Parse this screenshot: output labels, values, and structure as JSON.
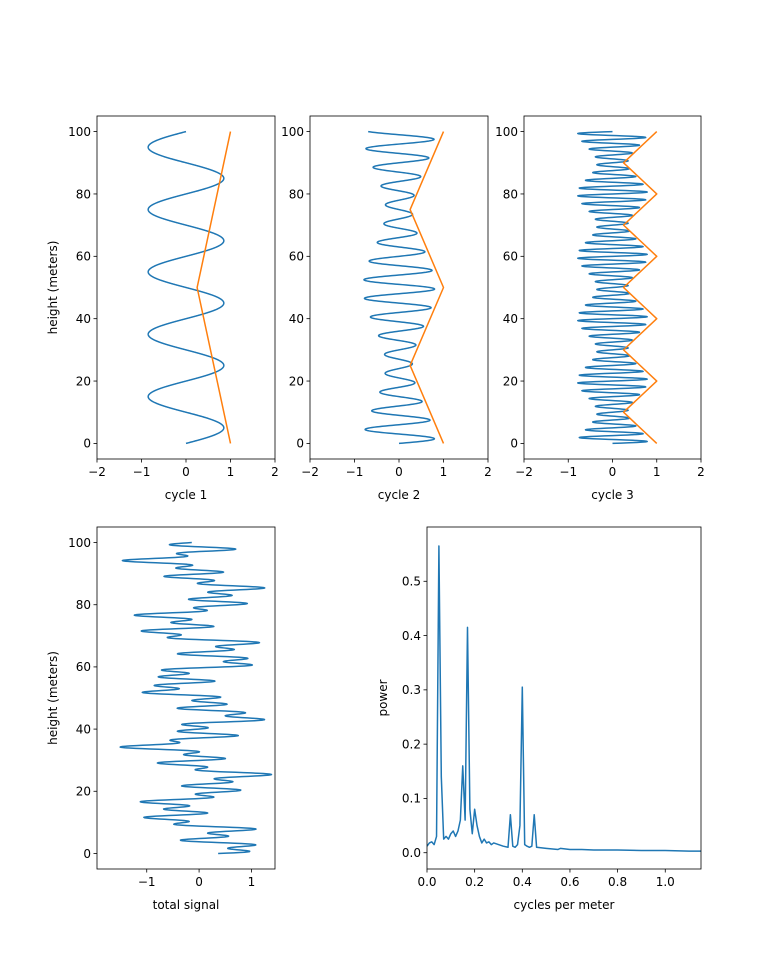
{
  "chart_data": [
    {
      "type": "line",
      "xlabel": "cycle 1",
      "ylabel": "height (meters)",
      "xlim": [
        -2,
        2
      ],
      "ylim": [
        -5,
        105
      ],
      "xticks": [
        "-2",
        "-1",
        "0",
        "1",
        "2"
      ],
      "yticks": [
        "0",
        "20",
        "40",
        "60",
        "80",
        "100"
      ],
      "series": [
        {
          "color": "#1f77b4",
          "kind": "sine",
          "amplitude": 0.85,
          "period_m": 20,
          "note_values": "x = 0.85*sin(2*pi*h/20), h from 0 to 100"
        },
        {
          "color": "#ff7f0e",
          "kind": "triangle",
          "x": [
            1,
            0.25,
            1
          ],
          "y": [
            0,
            50,
            100
          ]
        }
      ]
    },
    {
      "type": "line",
      "xlabel": "cycle 2",
      "ylabel": "",
      "xlim": [
        -2,
        2
      ],
      "ylim": [
        -5,
        105
      ],
      "xticks": [
        "-2",
        "-1",
        "0",
        "1",
        "2"
      ],
      "yticks": [
        "0",
        "20",
        "40",
        "60",
        "80",
        "100"
      ],
      "series": [
        {
          "color": "#1f77b4",
          "kind": "sine",
          "period_m": 6,
          "amplitude_min": 0.3,
          "amplitude_max": 0.8
        },
        {
          "color": "#ff7f0e",
          "kind": "triangle",
          "x": [
            1,
            0.25,
            1,
            0.25,
            1
          ],
          "y": [
            0,
            25,
            50,
            75,
            100
          ]
        }
      ]
    },
    {
      "type": "line",
      "xlabel": "cycle 3",
      "ylabel": "",
      "xlim": [
        -2,
        2
      ],
      "ylim": [
        -5,
        105
      ],
      "xticks": [
        "-2",
        "-1",
        "0",
        "1",
        "2"
      ],
      "yticks": [
        "0",
        "20",
        "40",
        "60",
        "80",
        "100"
      ],
      "series": [
        {
          "color": "#1f77b4",
          "kind": "sine",
          "period_m": 2.5,
          "amplitude_min": 0.35,
          "amplitude_max": 0.8
        },
        {
          "color": "#ff7f0e",
          "kind": "triangle",
          "x": [
            1,
            0.25,
            1,
            0.25,
            1,
            0.25,
            1,
            0.25,
            1,
            0.25,
            1
          ],
          "y": [
            0,
            10,
            20,
            30,
            40,
            50,
            60,
            70,
            80,
            90,
            100
          ]
        }
      ]
    },
    {
      "type": "line",
      "xlabel": "total signal",
      "ylabel": "height (meters)",
      "xlim": [
        -1.95,
        1.45
      ],
      "ylim": [
        -5,
        105
      ],
      "xticks": [
        "-1",
        "0",
        "1"
      ],
      "yticks": [
        "0",
        "20",
        "40",
        "60",
        "80",
        "100"
      ],
      "series": [
        {
          "color": "#1f77b4",
          "kind": "sum_of_cycles"
        }
      ]
    },
    {
      "type": "line",
      "xlabel": "cycles per meter",
      "ylabel": "power",
      "xlim": [
        0,
        1.15
      ],
      "ylim": [
        -0.03,
        0.6
      ],
      "xticks": [
        "0.0",
        "0.2",
        "0.4",
        "0.6",
        "0.8",
        "1.0"
      ],
      "yticks": [
        "0.0",
        "0.1",
        "0.2",
        "0.3",
        "0.4",
        "0.5"
      ],
      "series": [
        {
          "color": "#1f77b4",
          "x": [
            0.0,
            0.01,
            0.02,
            0.03,
            0.04,
            0.05,
            0.06,
            0.07,
            0.08,
            0.09,
            0.1,
            0.11,
            0.12,
            0.13,
            0.14,
            0.15,
            0.16,
            0.17,
            0.18,
            0.19,
            0.2,
            0.21,
            0.22,
            0.23,
            0.24,
            0.25,
            0.26,
            0.27,
            0.28,
            0.3,
            0.32,
            0.34,
            0.35,
            0.36,
            0.37,
            0.38,
            0.39,
            0.4,
            0.41,
            0.42,
            0.43,
            0.44,
            0.45,
            0.46,
            0.5,
            0.55,
            0.56,
            0.6,
            0.65,
            0.7,
            0.8,
            0.9,
            1.0,
            1.1,
            1.15
          ],
          "y": [
            0.012,
            0.018,
            0.02,
            0.015,
            0.03,
            0.565,
            0.14,
            0.025,
            0.03,
            0.025,
            0.035,
            0.04,
            0.03,
            0.04,
            0.06,
            0.16,
            0.06,
            0.415,
            0.08,
            0.035,
            0.08,
            0.05,
            0.03,
            0.018,
            0.025,
            0.018,
            0.02,
            0.015,
            0.018,
            0.015,
            0.012,
            0.01,
            0.07,
            0.012,
            0.01,
            0.015,
            0.05,
            0.305,
            0.015,
            0.012,
            0.01,
            0.012,
            0.07,
            0.01,
            0.008,
            0.006,
            0.008,
            0.006,
            0.006,
            0.005,
            0.005,
            0.004,
            0.004,
            0.003,
            0.003
          ]
        }
      ]
    }
  ]
}
